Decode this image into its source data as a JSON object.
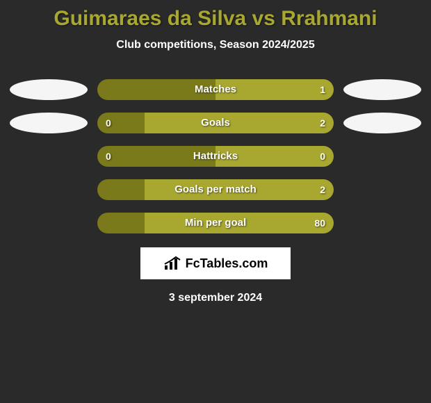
{
  "title": "Guimaraes da Silva vs Rrahmani",
  "subtitle": "Club competitions, Season 2024/2025",
  "bar_colors": {
    "olive_dark": "#7a7a1a",
    "olive_light": "#a8a830"
  },
  "title_color": "#a8a830",
  "text_color": "#ffffff",
  "background_color": "#2a2a2a",
  "ellipse_color": "#f5f5f5",
  "stats": [
    {
      "label": "Matches",
      "left_value": "",
      "right_value": "1",
      "left_color": "#7a7a1a",
      "right_color": "#a8a830",
      "left_pct": 50,
      "right_pct": 50,
      "show_left_ellipse": true,
      "show_right_ellipse": true
    },
    {
      "label": "Goals",
      "left_value": "0",
      "right_value": "2",
      "left_color": "#7a7a1a",
      "right_color": "#a8a830",
      "left_pct": 20,
      "right_pct": 80,
      "show_left_ellipse": true,
      "show_right_ellipse": true
    },
    {
      "label": "Hattricks",
      "left_value": "0",
      "right_value": "0",
      "left_color": "#7a7a1a",
      "right_color": "#a8a830",
      "left_pct": 50,
      "right_pct": 50,
      "show_left_ellipse": false,
      "show_right_ellipse": false
    },
    {
      "label": "Goals per match",
      "left_value": "",
      "right_value": "2",
      "left_color": "#7a7a1a",
      "right_color": "#a8a830",
      "left_pct": 20,
      "right_pct": 80,
      "show_left_ellipse": false,
      "show_right_ellipse": false
    },
    {
      "label": "Min per goal",
      "left_value": "",
      "right_value": "80",
      "left_color": "#7a7a1a",
      "right_color": "#a8a830",
      "left_pct": 20,
      "right_pct": 80,
      "show_left_ellipse": false,
      "show_right_ellipse": false
    }
  ],
  "logo_text": "FcTables.com",
  "date": "3 september 2024"
}
